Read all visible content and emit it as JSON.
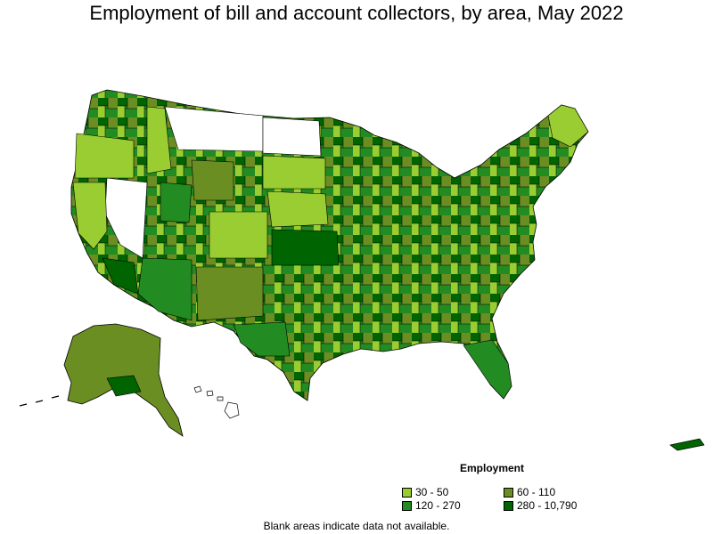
{
  "title": "Employment of bill and account collectors, by area, May 2022",
  "legend": {
    "title": "Employment",
    "items": [
      {
        "label": "30 - 50",
        "color": "#9acd32"
      },
      {
        "label": "60 - 110",
        "color": "#6b8e23"
      },
      {
        "label": "120 - 270",
        "color": "#228b22"
      },
      {
        "label": "280 - 10,790",
        "color": "#006400"
      }
    ]
  },
  "footnote": "Blank areas indicate data not available.",
  "colors": {
    "blank": "#ffffff",
    "border": "#000000"
  }
}
